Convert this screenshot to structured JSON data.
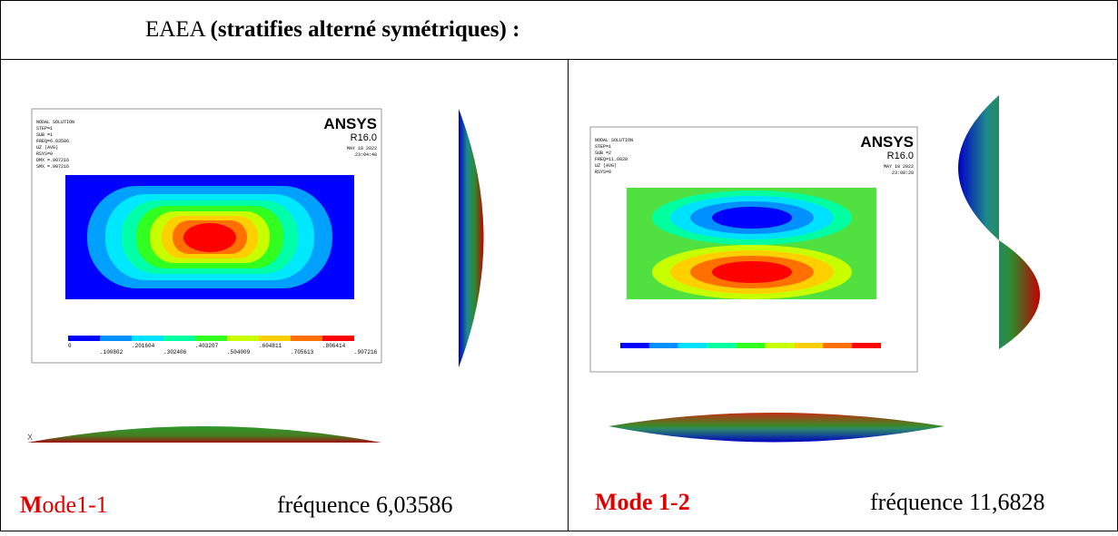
{
  "header": {
    "prefix": "EAEA",
    "title": "(stratifies alterné symétriques) :"
  },
  "cells": [
    {
      "ansys": {
        "logo": "ANSYS",
        "version": "R16.0",
        "info": [
          "NODAL SOLUTION",
          "STEP=1",
          "SUB =1",
          "FREQ=6.03586",
          "UZ (AVG)",
          "RSYS=0",
          "DMX =.907216",
          "SMX =.907216"
        ],
        "date": [
          "MAY 18 2022",
          "23:04:48"
        ],
        "legend_top": [
          "0",
          ".201604",
          ".403207",
          ".604811",
          ".806414"
        ],
        "legend_bottom": [
          ".100802",
          ".302406",
          ".504009",
          ".705613",
          ".907216"
        ]
      },
      "caption": {
        "mode_initial": "M",
        "mode_rest": "ode1-1",
        "frequency": "fréquence 6,03586"
      }
    },
    {
      "ansys": {
        "logo": "ANSYS",
        "version": "R16.0",
        "info": [
          "NODAL SOLUTION",
          "STEP=1",
          "SUB =2",
          "FREQ=11.6828",
          "UZ (AVG)",
          "RSYS=0"
        ],
        "date": [
          "MAY 18 2022",
          "23:08:28"
        ]
      },
      "caption": {
        "mode": "Mode 1-2",
        "frequency": "fréquence 11,6828"
      }
    }
  ]
}
